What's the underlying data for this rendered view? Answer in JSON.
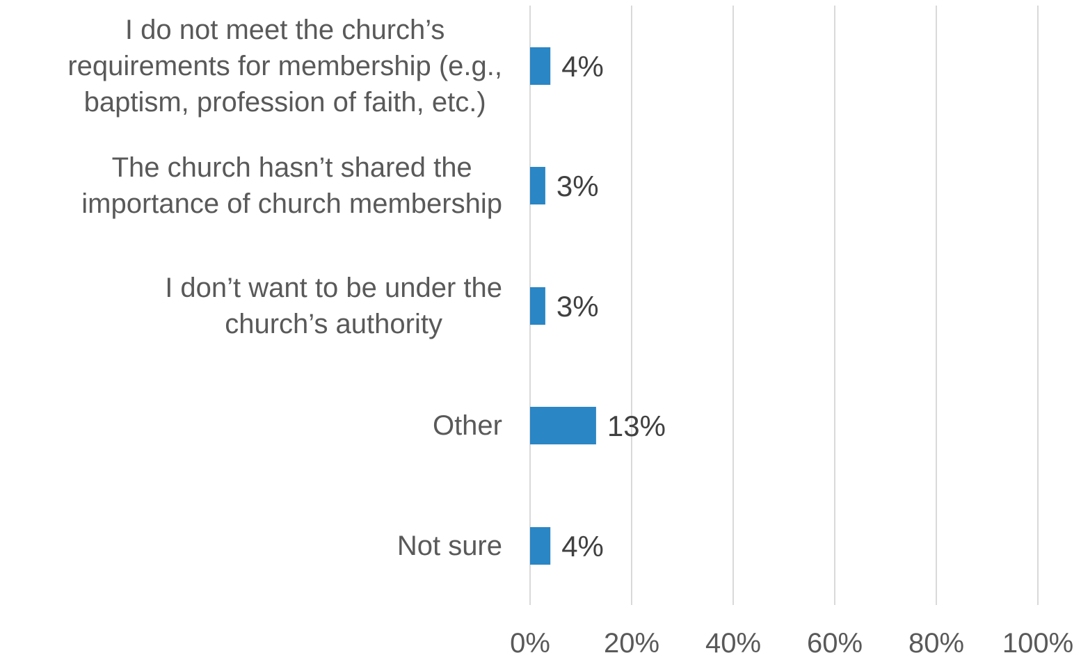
{
  "chart_data": {
    "type": "bar",
    "orientation": "horizontal",
    "categories": [
      "I do not meet the church’s requirements for membership (e.g., baptism, profession of faith, etc.)",
      "The church hasn’t shared the importance of church membership",
      "I don’t want to be under the church’s authority",
      "Other",
      "Not sure"
    ],
    "category_lines": [
      [
        "I do not meet the church’s",
        "requirements for membership (e.g.,",
        "baptism, profession of faith, etc.)"
      ],
      [
        "The church hasn’t shared the",
        "importance of church membership"
      ],
      [
        "I don’t want to be under the",
        "church’s authority"
      ],
      [
        "Other"
      ],
      [
        "Not sure"
      ]
    ],
    "values": [
      4,
      3,
      3,
      13,
      4
    ],
    "data_labels": [
      "4%",
      "3%",
      "3%",
      "13%",
      "4%"
    ],
    "x_ticks": [
      "0%",
      "20%",
      "40%",
      "60%",
      "80%",
      "100%"
    ],
    "xlim": [
      0,
      100
    ],
    "grid": "vertical",
    "colors": {
      "bar": "#2a86c4",
      "grid": "#d9d9d9",
      "label": "#595959",
      "data_label": "#404040"
    }
  }
}
